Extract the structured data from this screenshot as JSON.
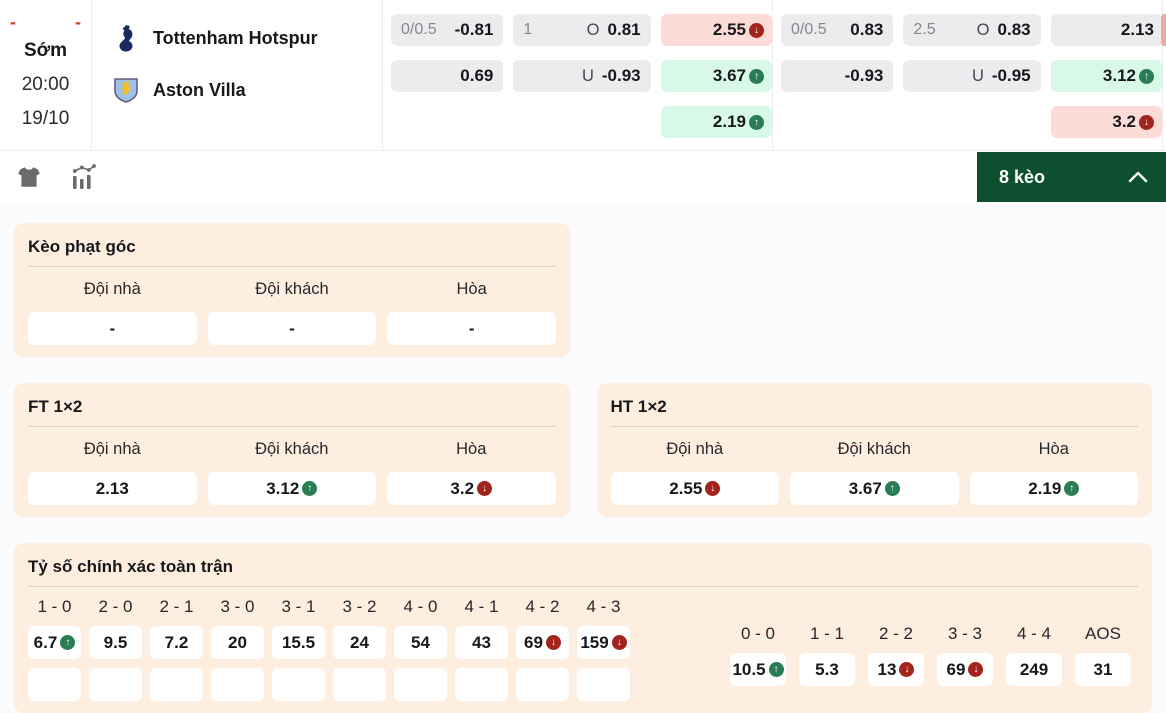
{
  "header": {
    "score_home": "-",
    "score_away": "-",
    "status": "Sớm",
    "kickoff": "20:00",
    "date": "19/10",
    "teams": [
      "Tottenham Hotspur",
      "Aston Villa"
    ],
    "odds_groups": [
      {
        "handicap": [
          {
            "line": "0/0.5",
            "value": "-0.81"
          },
          {
            "line": "",
            "value": "0.69"
          }
        ],
        "total": [
          {
            "line": "1",
            "side": "O",
            "value": "0.81"
          },
          {
            "line": "",
            "side": "U",
            "value": "-0.93"
          }
        ],
        "x12": [
          {
            "value": "2.55",
            "trend": "down"
          },
          {
            "value": "3.67",
            "trend": "up"
          },
          {
            "value": "2.19",
            "trend": "up"
          }
        ]
      },
      {
        "handicap": [
          {
            "line": "0/0.5",
            "value": "0.83"
          },
          {
            "line": "",
            "value": "-0.93"
          }
        ],
        "total": [
          {
            "line": "2.5",
            "side": "O",
            "value": "0.83"
          },
          {
            "line": "",
            "side": "U",
            "value": "-0.95"
          }
        ],
        "x12": [
          {
            "value": "2.13",
            "bg": "gray"
          },
          {
            "value": "3.12",
            "trend": "up"
          },
          {
            "value": "3.2",
            "trend": "down"
          }
        ]
      }
    ]
  },
  "toolbar": {
    "market_count": "8 kèo"
  },
  "colors": {
    "accent_green": "#0e4f2d",
    "trend_up": "#2a7d52",
    "trend_down": "#a3241d",
    "card_bg": "#fdeee0"
  },
  "sections": {
    "corner": {
      "title": "Kèo phạt góc",
      "headers": [
        "Đội nhà",
        "Đội khách",
        "Hòa"
      ],
      "values": [
        {
          "value": "-"
        },
        {
          "value": "-"
        },
        {
          "value": "-"
        }
      ]
    },
    "ft": {
      "title": "FT 1×2",
      "headers": [
        "Đội nhà",
        "Đội khách",
        "Hòa"
      ],
      "values": [
        {
          "value": "2.13"
        },
        {
          "value": "3.12",
          "trend": "up"
        },
        {
          "value": "3.2",
          "trend": "down"
        }
      ]
    },
    "ht": {
      "title": "HT 1×2",
      "headers": [
        "Đội nhà",
        "Đội khách",
        "Hòa"
      ],
      "values": [
        {
          "value": "2.55",
          "trend": "down"
        },
        {
          "value": "3.67",
          "trend": "up"
        },
        {
          "value": "2.19",
          "trend": "up"
        }
      ]
    },
    "correct_score": {
      "title": "Tỷ số chính xác toàn trận",
      "main": [
        {
          "label": "1 - 0",
          "value": "6.7",
          "trend": "up"
        },
        {
          "label": "2 - 0",
          "value": "9.5"
        },
        {
          "label": "2 - 1",
          "value": "7.2"
        },
        {
          "label": "3 - 0",
          "value": "20"
        },
        {
          "label": "3 - 1",
          "value": "15.5"
        },
        {
          "label": "3 - 2",
          "value": "24"
        },
        {
          "label": "4 - 0",
          "value": "54"
        },
        {
          "label": "4 - 1",
          "value": "43"
        },
        {
          "label": "4 - 2",
          "value": "69",
          "trend": "down"
        },
        {
          "label": "4 - 3",
          "value": "159",
          "trend": "down"
        }
      ],
      "main_row2_trends": [
        "up",
        "down",
        "",
        "",
        "",
        "down",
        "down",
        "down",
        "down",
        "down"
      ],
      "draw": [
        {
          "label": "0 - 0",
          "value": "10.5",
          "trend": "up"
        },
        {
          "label": "1 - 1",
          "value": "5.3"
        },
        {
          "label": "2 - 2",
          "value": "13",
          "trend": "down"
        },
        {
          "label": "3 - 3",
          "value": "69",
          "trend": "down"
        },
        {
          "label": "4 - 4",
          "value": "249"
        },
        {
          "label": "AOS",
          "value": "31"
        }
      ]
    }
  }
}
